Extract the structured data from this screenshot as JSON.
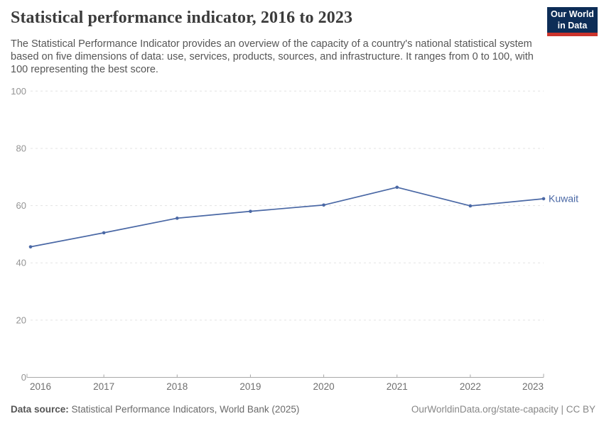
{
  "header": {
    "title": "Statistical performance indicator, 2016 to 2023",
    "subtitle": "The Statistical Performance Indicator provides an overview of the capacity of a country's national statistical system based on five dimensions of data: use, services, products, sources, and infrastructure. It ranges from 0 to 100, with 100 representing the best score.",
    "logo": {
      "line1": "Our World",
      "line2": "in Data",
      "bg_color": "#0d2d57",
      "stripe_color": "#cc342c"
    }
  },
  "chart_data": {
    "type": "line",
    "title": "Statistical performance indicator, 2016 to 2023",
    "x": [
      2016,
      2017,
      2018,
      2019,
      2020,
      2021,
      2022,
      2023
    ],
    "series": [
      {
        "name": "Kuwait",
        "color": "#4a68a5",
        "values": [
          45.6,
          50.5,
          55.6,
          58.0,
          60.2,
          66.4,
          59.9,
          62.4
        ]
      }
    ],
    "x_tick_labels": [
      "2016",
      "2017",
      "2018",
      "2019",
      "2020",
      "2021",
      "2022",
      "2023"
    ],
    "y_ticks": [
      0,
      20,
      40,
      60,
      80,
      100
    ],
    "ylim": [
      0,
      100
    ],
    "grid": "horizontal-dashed",
    "legend_position": "line-end-label",
    "entity_label": "Kuwait",
    "colors": {
      "gridline": "#e3e3e3",
      "axis": "#a8a8a8",
      "y_tick_label": "#949494",
      "x_tick_label": "#6f6f6f"
    }
  },
  "footer": {
    "datasource_label": "Data source:",
    "datasource_text": " Statistical Performance Indicators, World Bank (2025)",
    "attribution": "OurWorldinData.org/state-capacity | CC BY"
  }
}
